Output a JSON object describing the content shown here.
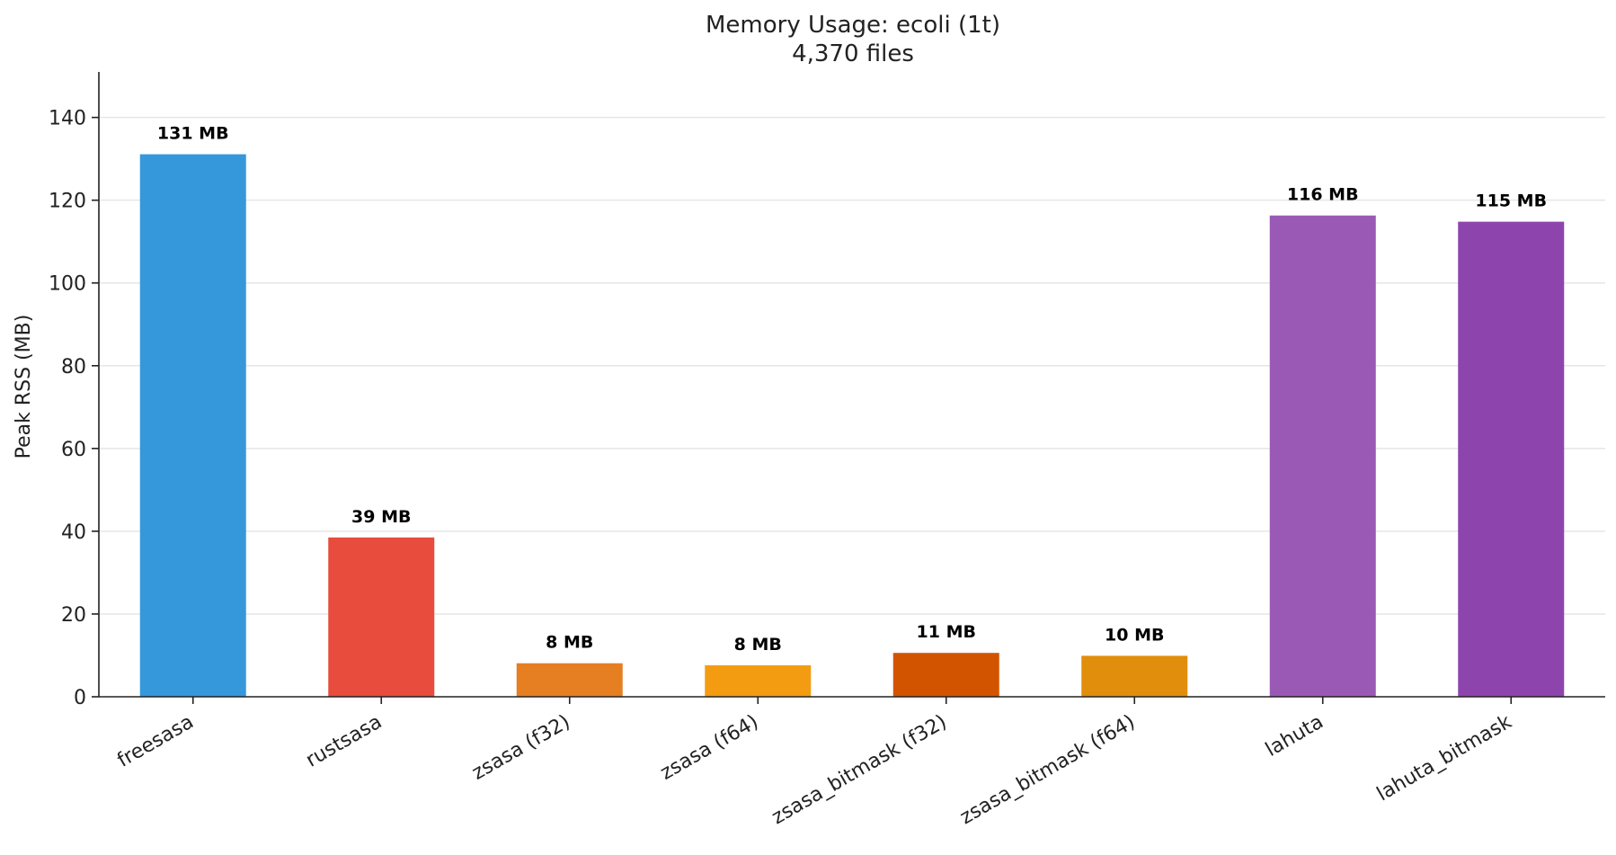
{
  "chart_data": {
    "type": "bar",
    "title": "Memory Usage: ecoli (1t)",
    "subtitle": "4,370 files",
    "xlabel": "",
    "ylabel": "Peak RSS (MB)",
    "ylim": [
      0,
      151
    ],
    "yticks": [
      0,
      20,
      40,
      60,
      80,
      100,
      120,
      140
    ],
    "grid": true,
    "categories": [
      "freesasa",
      "rustsasa",
      "zsasa (f32)",
      "zsasa (f64)",
      "zsasa_bitmask (f32)",
      "zsasa_bitmask (f64)",
      "lahuta",
      "lahuta_bitmask"
    ],
    "values": [
      131.1,
      38.5,
      8.1,
      7.6,
      10.6,
      9.9,
      116.3,
      114.8
    ],
    "data_labels": [
      "131 MB",
      "39 MB",
      "8 MB",
      "8 MB",
      "11 MB",
      "10 MB",
      "116 MB",
      "115 MB"
    ],
    "colors": [
      "#3498db",
      "#e74c3c",
      "#e67e22",
      "#f39c12",
      "#d35400",
      "#e08e0b",
      "#9b59b6",
      "#8e44ad"
    ]
  }
}
